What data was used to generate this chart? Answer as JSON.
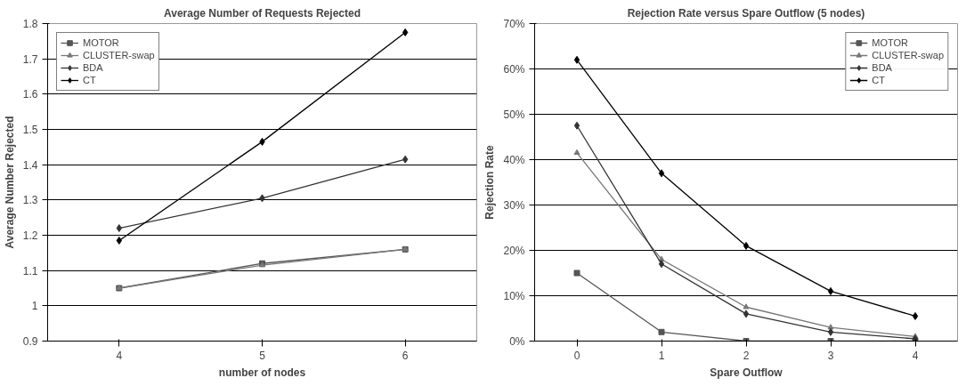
{
  "chart_data": [
    {
      "type": "line",
      "title": "Average Number of Requests Rejected",
      "xlabel": "number of nodes",
      "ylabel": "Average Number Rejected",
      "categories": [
        "4",
        "5",
        "6"
      ],
      "ylim": [
        0.9,
        1.8
      ],
      "yticks": [
        0.9,
        1,
        1.1,
        1.2,
        1.3,
        1.4,
        1.5,
        1.6,
        1.7,
        1.8
      ],
      "grid": "y",
      "legend": "top left",
      "series": [
        {
          "name": "MOTOR",
          "color": "#555555",
          "marker": "square",
          "values": [
            1.05,
            1.12,
            1.16
          ]
        },
        {
          "name": "CLUSTER-swap",
          "color": "#777777",
          "marker": "triangle",
          "values": [
            1.05,
            1.115,
            1.16
          ]
        },
        {
          "name": "BDA",
          "color": "#333333",
          "marker": "diamond",
          "values": [
            1.22,
            1.305,
            1.415
          ]
        },
        {
          "name": "CT",
          "color": "#000000",
          "marker": "diamond",
          "values": [
            1.185,
            1.465,
            1.775
          ]
        }
      ]
    },
    {
      "type": "line",
      "title": "Rejection Rate versus Spare Outflow (5 nodes)",
      "xlabel": "Spare Outflow",
      "ylabel": "Rejection Rate",
      "categories": [
        "0",
        "1",
        "2",
        "3",
        "4"
      ],
      "ylim": [
        0,
        70
      ],
      "yticks": [
        {
          "value": 0,
          "label": "0%"
        },
        {
          "value": 10,
          "label": "10%"
        },
        {
          "value": 20,
          "label": "20%"
        },
        {
          "value": 30,
          "label": "30%"
        },
        {
          "value": 40,
          "label": "40%"
        },
        {
          "value": 50,
          "label": "50%"
        },
        {
          "value": 60,
          "label": "60%"
        },
        {
          "value": 70,
          "label": "70%"
        }
      ],
      "grid": "y",
      "legend": "top right",
      "series": [
        {
          "name": "MOTOR",
          "color": "#555555",
          "marker": "square",
          "values": [
            15,
            2,
            0,
            0,
            0
          ]
        },
        {
          "name": "CLUSTER-swap",
          "color": "#777777",
          "marker": "triangle",
          "values": [
            41.5,
            18,
            7.5,
            3,
            1
          ]
        },
        {
          "name": "BDA",
          "color": "#333333",
          "marker": "diamond",
          "values": [
            47.5,
            17,
            6,
            2,
            0.5
          ]
        },
        {
          "name": "CT",
          "color": "#000000",
          "marker": "diamond",
          "values": [
            62,
            37,
            21,
            11,
            5.5
          ]
        }
      ]
    }
  ]
}
